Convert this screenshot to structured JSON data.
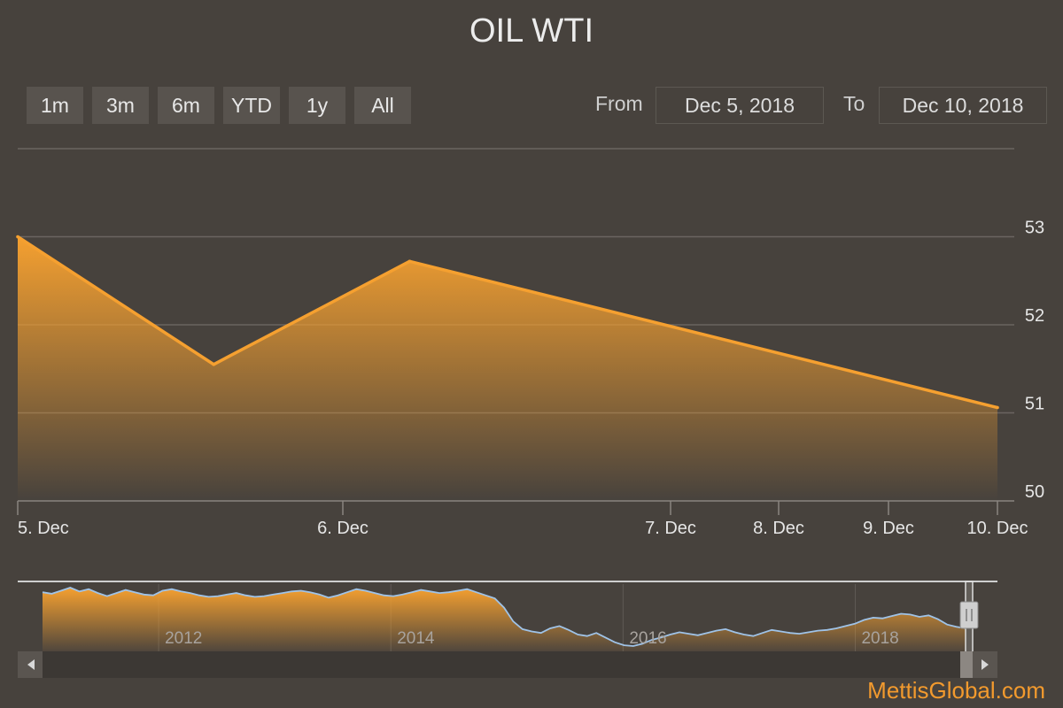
{
  "header": {
    "title": "OIL WTI"
  },
  "range_selector": {
    "buttons": [
      "1m",
      "3m",
      "6m",
      "YTD",
      "1y",
      "All"
    ],
    "from_label": "From",
    "to_label": "To",
    "from_value": "Dec 5, 2018",
    "to_value": "Dec 10, 2018"
  },
  "colors": {
    "background": "#47423d",
    "series_line": "#f5a030",
    "grid": "#6a6560",
    "navigator_line": "#9fc3e8",
    "brand": "#f29a2e"
  },
  "chart_data": {
    "type": "area",
    "title": "OIL WTI",
    "x": [
      "2018-12-05",
      "2018-12-06",
      "2018-12-07",
      "2018-12-10"
    ],
    "values": [
      53.0,
      51.55,
      52.72,
      51.06
    ],
    "x_tick_labels": [
      "5. Dec",
      "6. Dec",
      "7. Dec",
      "8. Dec",
      "9. Dec",
      "10. Dec"
    ],
    "y_ticks": [
      50,
      51,
      52,
      53
    ],
    "ylim": [
      50,
      54
    ],
    "grid": true,
    "y_axis_side": "right",
    "navigator": {
      "year_labels": [
        "2012",
        "2014",
        "2016",
        "2018"
      ],
      "values": [
        100,
        98,
        102,
        106,
        101,
        104,
        99,
        95,
        99,
        103,
        100,
        97,
        96,
        102,
        104,
        101,
        99,
        96,
        94,
        95,
        97,
        99,
        96,
        94,
        95,
        97,
        99,
        101,
        102,
        100,
        97,
        93,
        96,
        100,
        104,
        102,
        99,
        96,
        95,
        97,
        100,
        103,
        101,
        99,
        100,
        102,
        104,
        100,
        96,
        92,
        80,
        62,
        52,
        49,
        47,
        53,
        56,
        51,
        45,
        43,
        47,
        41,
        35,
        31,
        30,
        33,
        38,
        41,
        45,
        48,
        46,
        44,
        47,
        50,
        52,
        48,
        45,
        43,
        47,
        51,
        49,
        47,
        46,
        48,
        50,
        51,
        53,
        56,
        59,
        64,
        67,
        66,
        69,
        72,
        71,
        68,
        70,
        65,
        58,
        55,
        53
      ],
      "year_positions": [
        2012,
        2014,
        2016,
        2018
      ],
      "start_year": 2011,
      "end_year": 2018.95
    }
  },
  "footer": {
    "brand": "MettisGlobal.com"
  }
}
